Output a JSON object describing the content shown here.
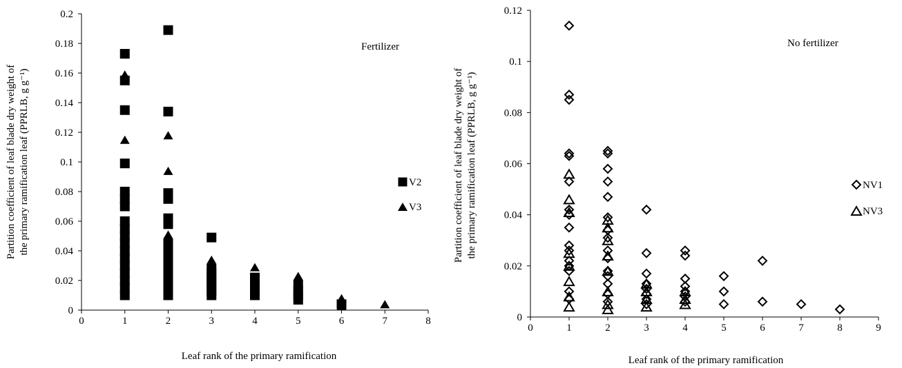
{
  "chart_data": [
    {
      "type": "scatter",
      "panel_label": "Fertilizer",
      "xlabel": "Leaf rank of the primary ramification",
      "ylabel": "Partition coefficient of leaf blade dry weight of the primary ramification leaf (PPRLB, g g⁻¹)",
      "ylabel_lines": [
        "Partition coefficient of leaf blade dry weight of",
        "the primary ramification leaf (PPRLB, g g⁻¹)"
      ],
      "xlim": [
        0,
        8
      ],
      "ylim": [
        0,
        0.2
      ],
      "xticks": [
        0,
        1,
        2,
        3,
        4,
        5,
        6,
        7,
        8
      ],
      "yticks": [
        0,
        0.02,
        0.04,
        0.06,
        0.08,
        0.1,
        0.12,
        0.14,
        0.16,
        0.18,
        0.2
      ],
      "xtick_labels": [
        "0",
        "1",
        "2",
        "3",
        "4",
        "5",
        "6",
        "7",
        "8"
      ],
      "ytick_labels": [
        "0",
        "0.02",
        "0.04",
        "0.06",
        "0.08",
        "0.1",
        "0.12",
        "0.14",
        "0.16",
        "0.18",
        "0.2"
      ],
      "legend_position": "right",
      "series": [
        {
          "name": "V2",
          "marker": "square-filled",
          "color": "#000000",
          "points": [
            [
              1,
              0.173
            ],
            [
              1,
              0.155
            ],
            [
              1,
              0.135
            ],
            [
              1,
              0.099
            ],
            [
              1,
              0.08
            ],
            [
              1,
              0.075
            ],
            [
              1,
              0.07
            ],
            [
              1,
              0.06
            ],
            [
              1,
              0.055
            ],
            [
              1,
              0.05
            ],
            [
              1,
              0.045
            ],
            [
              1,
              0.04
            ],
            [
              1,
              0.035
            ],
            [
              1,
              0.03
            ],
            [
              1,
              0.025
            ],
            [
              1,
              0.02
            ],
            [
              1,
              0.015
            ],
            [
              1,
              0.01
            ],
            [
              2,
              0.189
            ],
            [
              2,
              0.134
            ],
            [
              2,
              0.079
            ],
            [
              2,
              0.075
            ],
            [
              2,
              0.062
            ],
            [
              2,
              0.058
            ],
            [
              2,
              0.045
            ],
            [
              2,
              0.04
            ],
            [
              2,
              0.035
            ],
            [
              2,
              0.03
            ],
            [
              2,
              0.025
            ],
            [
              2,
              0.02
            ],
            [
              2,
              0.015
            ],
            [
              2,
              0.01
            ],
            [
              3,
              0.049
            ],
            [
              3,
              0.028
            ],
            [
              3,
              0.025
            ],
            [
              3,
              0.022
            ],
            [
              3,
              0.019
            ],
            [
              3,
              0.016
            ],
            [
              3,
              0.013
            ],
            [
              3,
              0.01
            ],
            [
              4,
              0.022
            ],
            [
              4,
              0.019
            ],
            [
              4,
              0.016
            ],
            [
              4,
              0.013
            ],
            [
              4,
              0.01
            ],
            [
              5,
              0.017
            ],
            [
              5,
              0.013
            ],
            [
              5,
              0.01
            ],
            [
              5,
              0.007
            ],
            [
              6,
              0.004
            ]
          ]
        },
        {
          "name": "V3",
          "marker": "triangle-filled",
          "color": "#000000",
          "points": [
            [
              1,
              0.159
            ],
            [
              1,
              0.155
            ],
            [
              1,
              0.115
            ],
            [
              1,
              0.058
            ],
            [
              1,
              0.05
            ],
            [
              1,
              0.04
            ],
            [
              1,
              0.03
            ],
            [
              1,
              0.02
            ],
            [
              1,
              0.01
            ],
            [
              2,
              0.118
            ],
            [
              2,
              0.094
            ],
            [
              2,
              0.051
            ],
            [
              2,
              0.045
            ],
            [
              2,
              0.035
            ],
            [
              2,
              0.025
            ],
            [
              2,
              0.015
            ],
            [
              3,
              0.034
            ],
            [
              3,
              0.03
            ],
            [
              3,
              0.02
            ],
            [
              3,
              0.012
            ],
            [
              4,
              0.029
            ],
            [
              4,
              0.02
            ],
            [
              4,
              0.012
            ],
            [
              5,
              0.023
            ],
            [
              5,
              0.015
            ],
            [
              6,
              0.008
            ],
            [
              6,
              0.003
            ],
            [
              7,
              0.004
            ]
          ]
        }
      ]
    },
    {
      "type": "scatter",
      "panel_label": "No fertilizer",
      "xlabel": "Leaf rank of the primary ramification",
      "ylabel": "Partition coefficient of leaf blade dry weight of the primary ramification leaf (PPRLB, g g⁻¹)",
      "ylabel_lines": [
        "Partition coefficient of leaf blade dry weight of",
        "the primary ramification leaf (PPRLB, g g⁻¹)"
      ],
      "xlim": [
        0,
        9
      ],
      "ylim": [
        0,
        0.12
      ],
      "xticks": [
        0,
        1,
        2,
        3,
        4,
        5,
        6,
        7,
        8,
        9
      ],
      "yticks": [
        0,
        0.02,
        0.04,
        0.06,
        0.08,
        0.1,
        0.12
      ],
      "xtick_labels": [
        "0",
        "1",
        "2",
        "3",
        "4",
        "5",
        "6",
        "7",
        "8",
        "9"
      ],
      "ytick_labels": [
        "0",
        "0.02",
        "0.04",
        "0.06",
        "0.08",
        "0.1",
        "0.12"
      ],
      "legend_position": "right",
      "series": [
        {
          "name": "NV1",
          "marker": "diamond-open",
          "color": "#000000",
          "points": [
            [
              1,
              0.114
            ],
            [
              1,
              0.087
            ],
            [
              1,
              0.085
            ],
            [
              1,
              0.064
            ],
            [
              1,
              0.063
            ],
            [
              1,
              0.053
            ],
            [
              1,
              0.042
            ],
            [
              1,
              0.04
            ],
            [
              1,
              0.035
            ],
            [
              1,
              0.028
            ],
            [
              1,
              0.026
            ],
            [
              1,
              0.022
            ],
            [
              1,
              0.02
            ],
            [
              1,
              0.018
            ],
            [
              1,
              0.01
            ],
            [
              1,
              0.007
            ],
            [
              2,
              0.065
            ],
            [
              2,
              0.064
            ],
            [
              2,
              0.058
            ],
            [
              2,
              0.053
            ],
            [
              2,
              0.047
            ],
            [
              2,
              0.039
            ],
            [
              2,
              0.034
            ],
            [
              2,
              0.031
            ],
            [
              2,
              0.026
            ],
            [
              2,
              0.023
            ],
            [
              2,
              0.018
            ],
            [
              2,
              0.016
            ],
            [
              2,
              0.013
            ],
            [
              2,
              0.009
            ],
            [
              2,
              0.006
            ],
            [
              3,
              0.042
            ],
            [
              3,
              0.025
            ],
            [
              3,
              0.017
            ],
            [
              3,
              0.013
            ],
            [
              3,
              0.011
            ],
            [
              3,
              0.009
            ],
            [
              3,
              0.007
            ],
            [
              3,
              0.005
            ],
            [
              4,
              0.026
            ],
            [
              4,
              0.024
            ],
            [
              4,
              0.015
            ],
            [
              4,
              0.012
            ],
            [
              4,
              0.01
            ],
            [
              4,
              0.008
            ],
            [
              4,
              0.006
            ],
            [
              5,
              0.016
            ],
            [
              5,
              0.01
            ],
            [
              5,
              0.005
            ],
            [
              6,
              0.022
            ],
            [
              6,
              0.006
            ],
            [
              7,
              0.005
            ],
            [
              8,
              0.003
            ]
          ]
        },
        {
          "name": "NV3",
          "marker": "triangle-open",
          "color": "#000000",
          "points": [
            [
              1,
              0.056
            ],
            [
              1,
              0.046
            ],
            [
              1,
              0.041
            ],
            [
              1,
              0.025
            ],
            [
              1,
              0.02
            ],
            [
              1,
              0.014
            ],
            [
              1,
              0.008
            ],
            [
              1,
              0.004
            ],
            [
              2,
              0.038
            ],
            [
              2,
              0.035
            ],
            [
              2,
              0.03
            ],
            [
              2,
              0.024
            ],
            [
              2,
              0.018
            ],
            [
              2,
              0.01
            ],
            [
              2,
              0.005
            ],
            [
              2,
              0.003
            ],
            [
              3,
              0.013
            ],
            [
              3,
              0.01
            ],
            [
              3,
              0.007
            ],
            [
              3,
              0.004
            ],
            [
              4,
              0.01
            ],
            [
              4,
              0.007
            ],
            [
              4,
              0.005
            ]
          ]
        }
      ]
    }
  ]
}
